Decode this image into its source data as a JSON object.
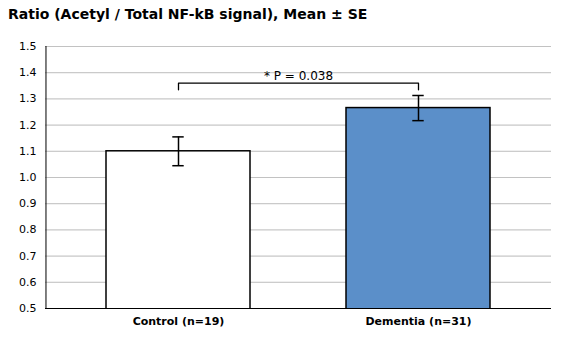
{
  "chart_data": {
    "type": "bar",
    "title": "Ratio (Acetyl / Total NF-kB signal), Mean ± SE",
    "categories": [
      "Control (n=19)",
      "Dementia (n=31)"
    ],
    "values": [
      1.1,
      1.265
    ],
    "errors": [
      0.055,
      0.048
    ],
    "colors": [
      "white",
      "#5b8fc9"
    ],
    "ylim": [
      0.5,
      1.5
    ],
    "yticks": [
      0.5,
      0.6,
      0.7,
      0.8,
      0.9,
      {
        "value": 1.0,
        "label": "1.0"
      },
      1.1,
      1.2,
      1.3,
      1.4,
      1.5
    ],
    "grid": true,
    "annotations": [
      {
        "text": "* P = 0.038",
        "y": 1.36
      }
    ]
  }
}
